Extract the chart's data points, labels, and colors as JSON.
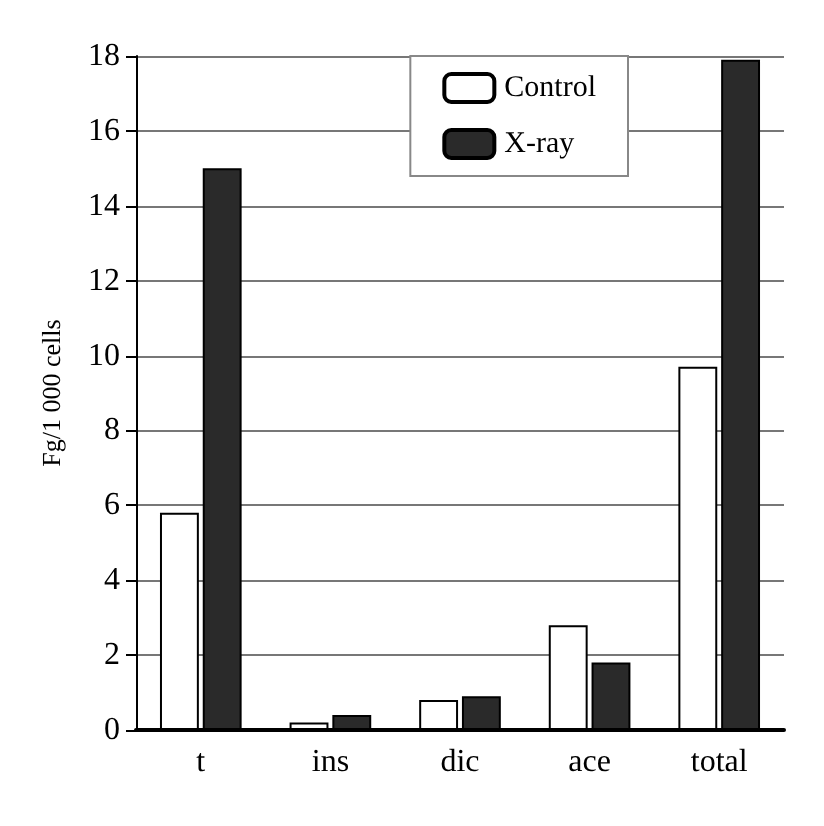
{
  "chart_data": {
    "type": "bar",
    "ylabel": "Fg/1 000 cells",
    "categories": [
      "t",
      "ins",
      "dic",
      "ace",
      "total"
    ],
    "series": [
      {
        "name": "Control",
        "color": "#ffffff",
        "values": [
          5.8,
          0.2,
          0.8,
          2.8,
          9.7
        ]
      },
      {
        "name": "X-ray",
        "color": "#2a2a2a",
        "values": [
          15.0,
          0.4,
          0.9,
          1.8,
          17.9
        ]
      }
    ],
    "ylim": [
      0,
      18
    ],
    "yticks": [
      0,
      2,
      4,
      6,
      8,
      10,
      12,
      14,
      16,
      18
    ],
    "grid": "y",
    "legend": "top right"
  }
}
